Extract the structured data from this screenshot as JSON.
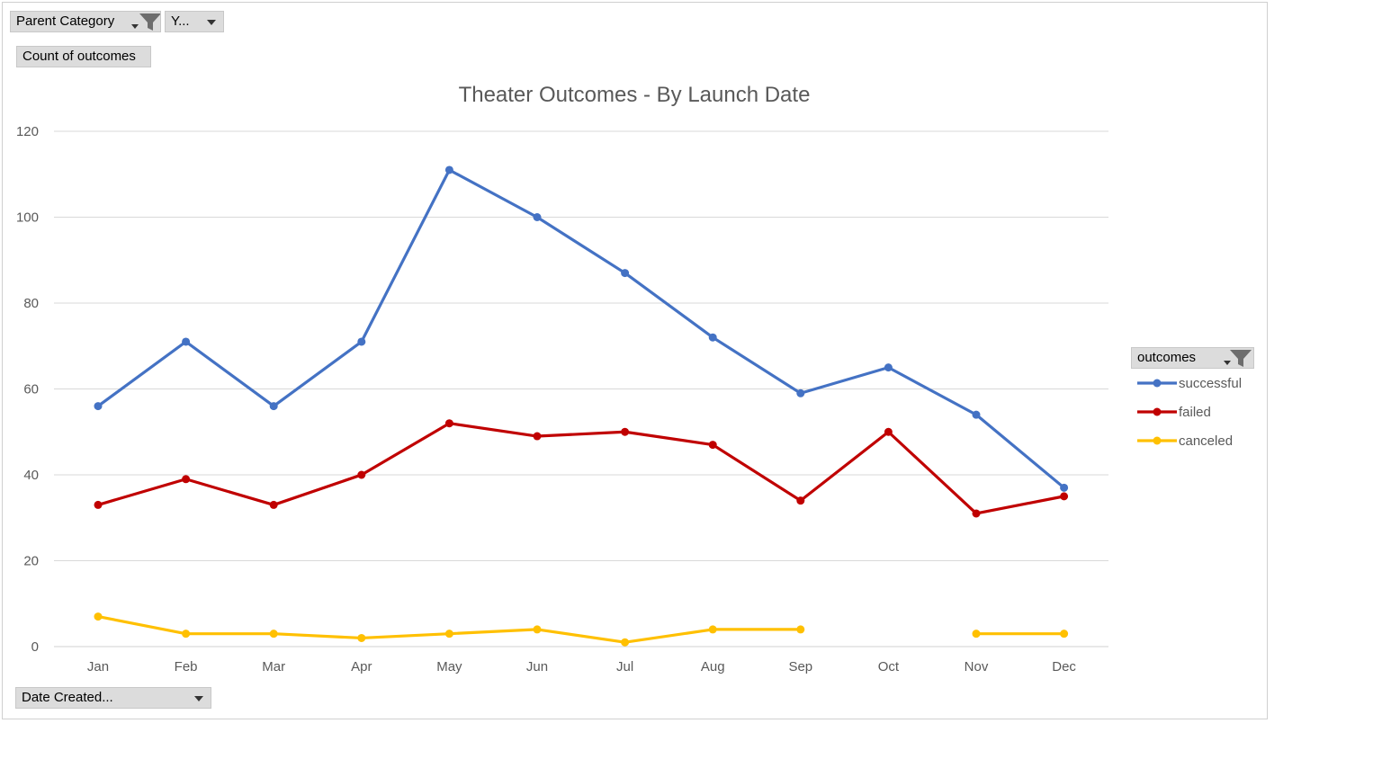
{
  "pivot_buttons": {
    "parent_category": "Parent Category",
    "year": "Y...",
    "count_of_outcomes": "Count of outcomes",
    "date_created": "Date Created...",
    "outcomes": "outcomes"
  },
  "chart_data": {
    "type": "line",
    "title": "Theater Outcomes - By Launch Date",
    "categories": [
      "Jan",
      "Feb",
      "Mar",
      "Apr",
      "May",
      "Jun",
      "Jul",
      "Aug",
      "Sep",
      "Oct",
      "Nov",
      "Dec"
    ],
    "ylim": [
      0,
      120
    ],
    "yticks": [
      0,
      20,
      40,
      60,
      80,
      100,
      120
    ],
    "grid": true,
    "legend_position": "right",
    "series": [
      {
        "name": "successful",
        "color": "#4472c4",
        "values": [
          56,
          71,
          56,
          71,
          111,
          100,
          87,
          72,
          59,
          65,
          54,
          37
        ]
      },
      {
        "name": "failed",
        "color": "#c00000",
        "values": [
          33,
          39,
          33,
          40,
          52,
          49,
          50,
          47,
          34,
          50,
          31,
          35
        ]
      },
      {
        "name": "canceled",
        "color": "#ffc000",
        "values": [
          7,
          3,
          3,
          2,
          3,
          4,
          1,
          4,
          4,
          null,
          3,
          3
        ]
      }
    ]
  }
}
